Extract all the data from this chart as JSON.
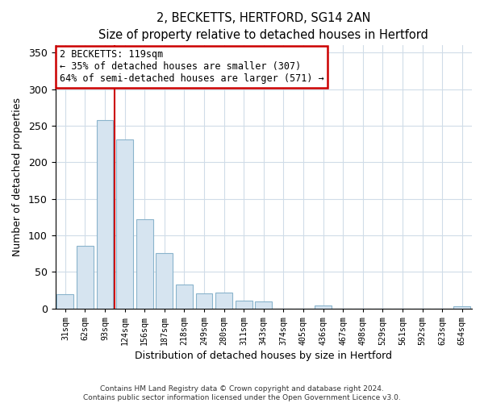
{
  "title": "2, BECKETTS, HERTFORD, SG14 2AN",
  "subtitle": "Size of property relative to detached houses in Hertford",
  "xlabel": "Distribution of detached houses by size in Hertford",
  "ylabel": "Number of detached properties",
  "bar_color": "#d6e4f0",
  "bar_edge_color": "#8ab4cc",
  "categories": [
    "31sqm",
    "62sqm",
    "93sqm",
    "124sqm",
    "156sqm",
    "187sqm",
    "218sqm",
    "249sqm",
    "280sqm",
    "311sqm",
    "343sqm",
    "374sqm",
    "405sqm",
    "436sqm",
    "467sqm",
    "498sqm",
    "529sqm",
    "561sqm",
    "592sqm",
    "623sqm",
    "654sqm"
  ],
  "values": [
    19,
    86,
    258,
    231,
    122,
    76,
    33,
    20,
    21,
    11,
    9,
    0,
    0,
    4,
    0,
    0,
    0,
    0,
    0,
    0,
    3
  ],
  "ylim": [
    0,
    360
  ],
  "yticks": [
    0,
    50,
    100,
    150,
    200,
    250,
    300,
    350
  ],
  "vline_x_pos": 2.5,
  "vline_color": "#cc0000",
  "annotation_title": "2 BECKETTS: 119sqm",
  "annotation_line1": "← 35% of detached houses are smaller (307)",
  "annotation_line2": "64% of semi-detached houses are larger (571) →",
  "annotation_box_color": "#ffffff",
  "annotation_box_edge": "#cc0000",
  "footer1": "Contains HM Land Registry data © Crown copyright and database right 2024.",
  "footer2": "Contains public sector information licensed under the Open Government Licence v3.0.",
  "background_color": "#ffffff",
  "plot_bg_color": "#ffffff",
  "grid_color": "#d0dce8"
}
